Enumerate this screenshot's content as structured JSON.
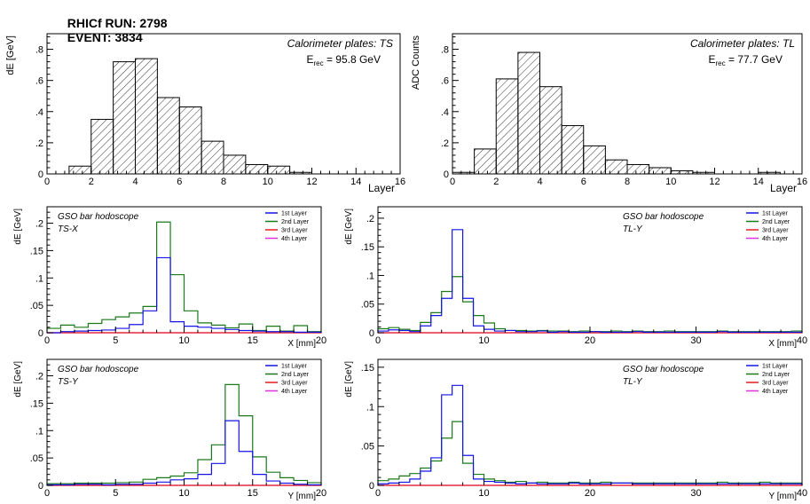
{
  "header": {
    "run": "RHICf RUN: 2798",
    "event": "EVENT: 3834"
  },
  "chart_data": [
    {
      "type": "bar",
      "subtype": "histogram",
      "panel": "calo-ts",
      "ylabel": "dE [GeV]",
      "xlabel": "Layer",
      "xlim": [
        0,
        16
      ],
      "ylim": [
        0,
        0.9
      ],
      "xticks": [
        0,
        2,
        4,
        6,
        8,
        10,
        12,
        14,
        16
      ],
      "yticks": [
        0,
        0.2,
        0.4,
        0.6,
        0.8
      ],
      "annotations": [
        "Calorimeter plates: TS",
        "E",
        "rec",
        " = 95.8 GeV"
      ],
      "bin_edges": [
        0,
        1,
        2,
        3,
        4,
        5,
        6,
        7,
        8,
        9,
        10,
        11,
        12,
        13,
        14,
        15,
        16
      ],
      "values": [
        0.0,
        0.05,
        0.35,
        0.72,
        0.74,
        0.49,
        0.43,
        0.21,
        0.12,
        0.06,
        0.05,
        0.01,
        0.0,
        0.0,
        0.0,
        0.0
      ],
      "fill": "hatched"
    },
    {
      "type": "bar",
      "subtype": "histogram",
      "panel": "calo-tl",
      "ylabel": "ADC Counts",
      "xlabel": "Layer",
      "xlim": [
        0,
        16
      ],
      "ylim": [
        0,
        0.9
      ],
      "xticks": [
        0,
        2,
        4,
        6,
        8,
        10,
        12,
        14,
        16
      ],
      "yticks": [
        0,
        0.2,
        0.4,
        0.6,
        0.8
      ],
      "annotations": [
        "Calorimeter plates: TL",
        "E",
        "rec",
        " = 77.7 GeV"
      ],
      "bin_edges": [
        0,
        1,
        2,
        3,
        4,
        5,
        6,
        7,
        8,
        9,
        10,
        11,
        12,
        13,
        14,
        15,
        16
      ],
      "values": [
        0.01,
        0.16,
        0.61,
        0.78,
        0.56,
        0.31,
        0.18,
        0.09,
        0.06,
        0.04,
        0.02,
        0.01,
        0.0,
        0.0,
        0.01,
        0.0
      ],
      "fill": "hatched"
    },
    {
      "type": "line",
      "subtype": "step-histogram",
      "panel": "gso-ts-x",
      "ylabel": "dE [GeV]",
      "xlabel": "X [mm]",
      "xlim": [
        0,
        20
      ],
      "ylim": [
        0,
        0.23
      ],
      "xticks": [
        0,
        5,
        10,
        15,
        20
      ],
      "yticks": [
        0,
        0.05,
        0.1,
        0.15,
        0.2
      ],
      "annotations": [
        "GSO bar hodoscope",
        "TS-X"
      ],
      "bin_edges": [
        0,
        1,
        2,
        3,
        4,
        5,
        6,
        7,
        8,
        9,
        10,
        11,
        12,
        13,
        14,
        15,
        16,
        17,
        18,
        19,
        20
      ],
      "legend": [
        "1st Layer",
        "2nd Layer",
        "3rd Layer",
        "4th Layer"
      ],
      "series": [
        {
          "name": "1st Layer",
          "color": "#1414e6",
          "values": [
            0.0,
            0.002,
            0.003,
            0.004,
            0.005,
            0.008,
            0.015,
            0.04,
            0.137,
            0.02,
            0.012,
            0.01,
            0.008,
            0.006,
            0.004,
            0.003,
            0.002,
            0.002,
            0.001,
            0.001
          ]
        },
        {
          "name": "2nd Layer",
          "color": "#1a7a1a",
          "values": [
            0.008,
            0.014,
            0.01,
            0.017,
            0.024,
            0.029,
            0.036,
            0.048,
            0.202,
            0.106,
            0.04,
            0.018,
            0.014,
            0.009,
            0.016,
            0.004,
            0.012,
            0.003,
            0.013,
            0.002
          ]
        },
        {
          "name": "3rd Layer",
          "color": "#e61e1e",
          "values": [
            0,
            0,
            0,
            0,
            0,
            0,
            0,
            0,
            0,
            0,
            0,
            0,
            0,
            0,
            0,
            0,
            0,
            0,
            0,
            0
          ]
        },
        {
          "name": "4th Layer",
          "color": "#e02ee0",
          "values": [
            0,
            0,
            0,
            0,
            0,
            0,
            0,
            0,
            0,
            0,
            0,
            0,
            0,
            0,
            0,
            0,
            0,
            0,
            0,
            0
          ]
        }
      ]
    },
    {
      "type": "line",
      "subtype": "step-histogram",
      "panel": "gso-tl-y-top",
      "ylabel": "dE [GeV]",
      "xlabel": "X [mm]",
      "xlim": [
        0,
        40
      ],
      "ylim": [
        0,
        0.22
      ],
      "xticks": [
        0,
        10,
        20,
        30,
        40
      ],
      "yticks": [
        0,
        0.05,
        0.1,
        0.15,
        0.2
      ],
      "annotations": [
        "GSO bar hodoscope",
        "TL-Y"
      ],
      "bin_edges": [
        0,
        1,
        2,
        3,
        4,
        5,
        6,
        7,
        8,
        9,
        10,
        11,
        12,
        13,
        14,
        15,
        16,
        17,
        18,
        19,
        20,
        21,
        22,
        23,
        24,
        25,
        26,
        27,
        28,
        29,
        30,
        31,
        32,
        33,
        34,
        35,
        36,
        37,
        38,
        39,
        40
      ],
      "legend": [
        "1st Layer",
        "2nd Layer",
        "3rd Layer",
        "4th Layer"
      ],
      "series": [
        {
          "name": "1st Layer",
          "color": "#1414e6",
          "values": [
            0.003,
            0.005,
            0.004,
            0.002,
            0.012,
            0.03,
            0.06,
            0.18,
            0.06,
            0.012,
            0.006,
            0.003,
            0.004,
            0.002,
            0.002,
            0.003,
            0.001,
            0.002,
            0.001,
            0.001,
            0.002,
            0.001,
            0.001,
            0.001,
            0.002,
            0.001,
            0.001,
            0.001,
            0.001,
            0.001,
            0.001,
            0.001,
            0.002,
            0.001,
            0.001,
            0.001,
            0.001,
            0.001,
            0.001,
            0.001
          ]
        },
        {
          "name": "2nd Layer",
          "color": "#1a7a1a",
          "values": [
            0.007,
            0.009,
            0.006,
            0.004,
            0.018,
            0.035,
            0.072,
            0.098,
            0.054,
            0.03,
            0.017,
            0.007,
            0.004,
            0.004,
            0.003,
            0.004,
            0.003,
            0.003,
            0.002,
            0.003,
            0.002,
            0.002,
            0.003,
            0.002,
            0.003,
            0.002,
            0.002,
            0.003,
            0.002,
            0.002,
            0.002,
            0.002,
            0.003,
            0.002,
            0.002,
            0.002,
            0.002,
            0.002,
            0.002,
            0.003
          ]
        },
        {
          "name": "3rd Layer",
          "color": "#e61e1e",
          "values": [
            0,
            0,
            0,
            0,
            0,
            0,
            0,
            0,
            0,
            0,
            0,
            0,
            0,
            0,
            0,
            0,
            0,
            0,
            0,
            0,
            0,
            0,
            0,
            0,
            0,
            0,
            0,
            0,
            0,
            0,
            0,
            0,
            0,
            0,
            0,
            0,
            0,
            0,
            0,
            0
          ]
        },
        {
          "name": "4th Layer",
          "color": "#e02ee0",
          "values": [
            0,
            0,
            0,
            0,
            0,
            0,
            0,
            0,
            0,
            0,
            0,
            0,
            0,
            0,
            0,
            0,
            0,
            0,
            0,
            0,
            0,
            0,
            0,
            0,
            0,
            0,
            0,
            0,
            0,
            0,
            0,
            0,
            0,
            0,
            0,
            0,
            0,
            0,
            0,
            0
          ]
        }
      ]
    },
    {
      "type": "line",
      "subtype": "step-histogram",
      "panel": "gso-ts-y",
      "ylabel": "dE [GeV]",
      "xlabel": "Y [mm]",
      "xlim": [
        0,
        20
      ],
      "ylim": [
        0,
        0.23
      ],
      "xticks": [
        0,
        5,
        10,
        15,
        20
      ],
      "yticks": [
        0,
        0.05,
        0.1,
        0.15,
        0.2
      ],
      "annotations": [
        "GSO bar hodoscope",
        "TS-Y"
      ],
      "bin_edges": [
        0,
        1,
        2,
        3,
        4,
        5,
        6,
        7,
        8,
        9,
        10,
        11,
        12,
        13,
        14,
        15,
        16,
        17,
        18,
        19,
        20
      ],
      "legend": [
        "1st Layer",
        "2nd Layer",
        "3rd Layer",
        "4th Layer"
      ],
      "series": [
        {
          "name": "1st Layer",
          "color": "#1414e6",
          "values": [
            0.001,
            0.001,
            0.002,
            0.002,
            0.001,
            0.002,
            0.002,
            0.004,
            0.006,
            0.01,
            0.012,
            0.02,
            0.04,
            0.118,
            0.062,
            0.02,
            0.008,
            0.004,
            0.002,
            0.001
          ]
        },
        {
          "name": "2nd Layer",
          "color": "#1a7a1a",
          "values": [
            0.003,
            0.003,
            0.004,
            0.004,
            0.004,
            0.005,
            0.006,
            0.011,
            0.014,
            0.017,
            0.023,
            0.047,
            0.074,
            0.184,
            0.127,
            0.052,
            0.024,
            0.014,
            0.009,
            0.005
          ]
        },
        {
          "name": "3rd Layer",
          "color": "#e61e1e",
          "values": [
            0,
            0,
            0,
            0,
            0,
            0,
            0,
            0,
            0,
            0,
            0,
            0,
            0,
            0,
            0,
            0,
            0,
            0,
            0,
            0
          ]
        },
        {
          "name": "4th Layer",
          "color": "#e02ee0",
          "values": [
            0,
            0,
            0,
            0,
            0,
            0,
            0,
            0,
            0,
            0,
            0,
            0,
            0,
            0,
            0,
            0,
            0,
            0,
            0,
            0
          ]
        }
      ]
    },
    {
      "type": "line",
      "subtype": "step-histogram",
      "panel": "gso-tl-y-bottom",
      "ylabel": "dE [GeV]",
      "xlabel": "Y [mm]",
      "xlim": [
        0,
        40
      ],
      "ylim": [
        0,
        0.16
      ],
      "xticks": [
        0,
        10,
        20,
        30,
        40
      ],
      "yticks": [
        0,
        0.05,
        0.1,
        0.15
      ],
      "annotations": [
        "GSO bar hodoscope",
        "TL-Y"
      ],
      "bin_edges": [
        0,
        1,
        2,
        3,
        4,
        5,
        6,
        7,
        8,
        9,
        10,
        11,
        12,
        13,
        14,
        15,
        16,
        17,
        18,
        19,
        20,
        21,
        22,
        23,
        24,
        25,
        26,
        27,
        28,
        29,
        30,
        31,
        32,
        33,
        34,
        35,
        36,
        37,
        38,
        39,
        40
      ],
      "legend": [
        "1st Layer",
        "2nd Layer",
        "3rd Layer",
        "4th Layer"
      ],
      "series": [
        {
          "name": "1st Layer",
          "color": "#1414e6",
          "values": [
            0.002,
            0.003,
            0.004,
            0.008,
            0.018,
            0.035,
            0.115,
            0.127,
            0.038,
            0.008,
            0.005,
            0.004,
            0.003,
            0.002,
            0.003,
            0.002,
            0.002,
            0.002,
            0.003,
            0.002,
            0.002,
            0.002,
            0.003,
            0.003,
            0.002,
            0.002,
            0.002,
            0.002,
            0.002,
            0.002,
            0.002,
            0.002,
            0.002,
            0.002,
            0.002,
            0.002,
            0.002,
            0.002,
            0.002,
            0.002
          ]
        },
        {
          "name": "2nd Layer",
          "color": "#1a7a1a",
          "values": [
            0.006,
            0.008,
            0.012,
            0.015,
            0.022,
            0.031,
            0.06,
            0.081,
            0.028,
            0.014,
            0.008,
            0.006,
            0.004,
            0.005,
            0.003,
            0.004,
            0.003,
            0.003,
            0.004,
            0.003,
            0.003,
            0.004,
            0.003,
            0.003,
            0.003,
            0.003,
            0.003,
            0.003,
            0.003,
            0.003,
            0.003,
            0.003,
            0.004,
            0.003,
            0.003,
            0.003,
            0.004,
            0.003,
            0.003,
            0.003
          ]
        },
        {
          "name": "3rd Layer",
          "color": "#e61e1e",
          "values": [
            0,
            0,
            0,
            0,
            0,
            0,
            0,
            0,
            0,
            0,
            0,
            0,
            0,
            0,
            0,
            0,
            0,
            0,
            0,
            0,
            0,
            0,
            0,
            0,
            0,
            0,
            0,
            0,
            0,
            0,
            0,
            0,
            0,
            0,
            0,
            0,
            0,
            0,
            0,
            0
          ]
        },
        {
          "name": "4th Layer",
          "color": "#e02ee0",
          "values": [
            0,
            0,
            0,
            0,
            0,
            0,
            0,
            0,
            0,
            0,
            0,
            0,
            0,
            0,
            0,
            0,
            0,
            0,
            0,
            0,
            0,
            0,
            0,
            0,
            0,
            0,
            0,
            0,
            0,
            0,
            0,
            0,
            0,
            0,
            0,
            0,
            0,
            0,
            0,
            0
          ]
        }
      ]
    }
  ]
}
